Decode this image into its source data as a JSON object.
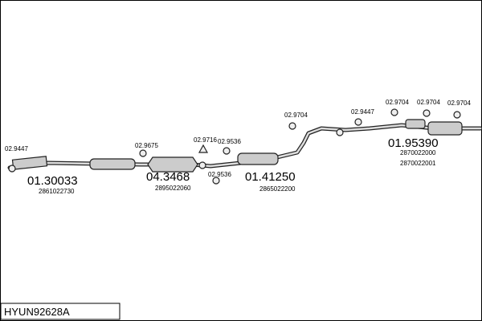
{
  "title": "HYUN92628A",
  "parts": [
    {
      "label": "02.9447"
    },
    {
      "label": "01.30033",
      "code": "2861022730"
    },
    {
      "label": "02.9675"
    },
    {
      "label": "04.3468",
      "code": "2895022060"
    },
    {
      "label": "02.9716"
    },
    {
      "label": "02.9536"
    },
    {
      "label": "02.9536"
    },
    {
      "label": "01.41250",
      "code": "2865022200"
    },
    {
      "label": "02.9704"
    },
    {
      "label": "02.9447"
    },
    {
      "label": "02.9704"
    },
    {
      "label": "02.9704"
    },
    {
      "label": "02.9704"
    },
    {
      "label": "01.95390",
      "codes": [
        "2870022000",
        "2870022001"
      ]
    }
  ]
}
